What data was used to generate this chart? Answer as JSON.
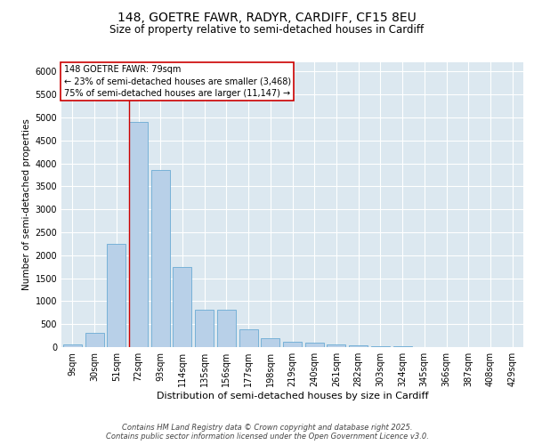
{
  "title1": "148, GOETRE FAWR, RADYR, CARDIFF, CF15 8EU",
  "title2": "Size of property relative to semi-detached houses in Cardiff",
  "xlabel": "Distribution of semi-detached houses by size in Cardiff",
  "ylabel": "Number of semi-detached properties",
  "footer1": "Contains HM Land Registry data © Crown copyright and database right 2025.",
  "footer2": "Contains public sector information licensed under the Open Government Licence v3.0.",
  "annotation_line1": "148 GOETRE FAWR: 79sqm",
  "annotation_line2": "← 23% of semi-detached houses are smaller (3,468)",
  "annotation_line3": "75% of semi-detached houses are larger (11,147) →",
  "bar_categories": [
    "9sqm",
    "30sqm",
    "51sqm",
    "72sqm",
    "93sqm",
    "114sqm",
    "135sqm",
    "156sqm",
    "177sqm",
    "198sqm",
    "219sqm",
    "240sqm",
    "261sqm",
    "282sqm",
    "303sqm",
    "324sqm",
    "345sqm",
    "366sqm",
    "387sqm",
    "408sqm",
    "429sqm"
  ],
  "bar_values": [
    50,
    310,
    2250,
    4900,
    3850,
    1750,
    820,
    820,
    390,
    200,
    125,
    95,
    50,
    30,
    18,
    12,
    8,
    5,
    5,
    5,
    5
  ],
  "bar_color": "#b8d0e8",
  "bar_edge_color": "#6aaad4",
  "ylim": [
    0,
    6200
  ],
  "yticks": [
    0,
    500,
    1000,
    1500,
    2000,
    2500,
    3000,
    3500,
    4000,
    4500,
    5000,
    5500,
    6000
  ],
  "bg_color": "#dce8f0",
  "grid_color": "#ffffff",
  "annotation_box_facecolor": "#ffffff",
  "annotation_box_edgecolor": "#cc0000",
  "red_line_color": "#cc0000",
  "title_fontsize": 10,
  "subtitle_fontsize": 8.5,
  "tick_fontsize": 7,
  "ylabel_fontsize": 7.5,
  "xlabel_fontsize": 8,
  "annotation_fontsize": 7,
  "footer_fontsize": 6
}
